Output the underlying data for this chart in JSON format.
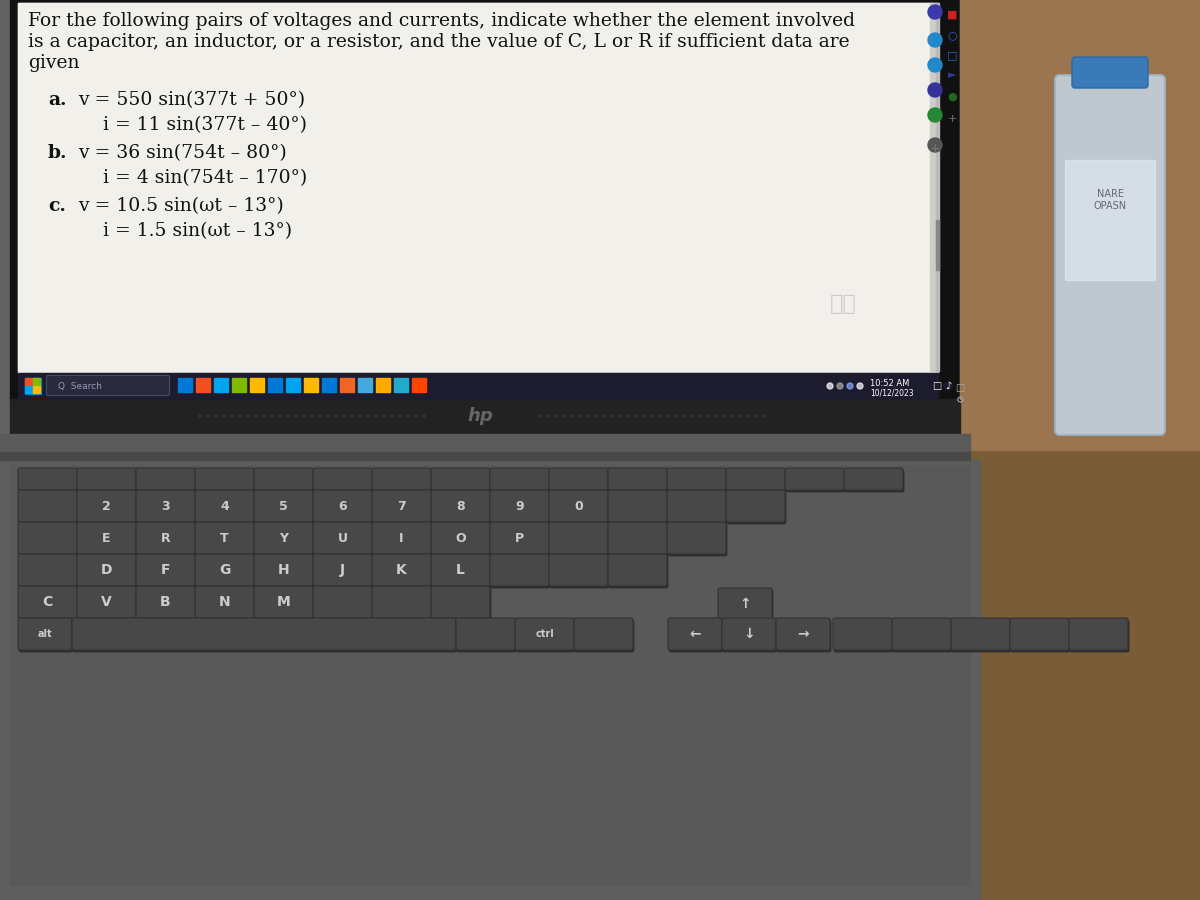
{
  "title_lines": [
    "For the following pairs of voltages and currents, indicate whether the element involved",
    "is a capacitor, an inductor, or a resistor, and the value of C, L or R if sufficient data are",
    "given"
  ],
  "problems": [
    {
      "label": "a.",
      "line1": "v = 550 sin(377t + 50°)",
      "line2": "i = 11 sin(377t – 40°)"
    },
    {
      "label": "b.",
      "line1": "v = 36 sin(754t – 80°)",
      "line2": "i = 4 sin(754t – 170°)"
    },
    {
      "label": "c.",
      "line1": "v = 10.5 sin(ωt – 13°)",
      "line2": "i = 1.5 sin(ωt – 13°)"
    }
  ],
  "screen_bg": "#e8e6e1",
  "content_bg": "#f2f0eb",
  "screen_text_color": "#111111",
  "laptop_body_color": "#626262",
  "taskbar_color": "#1c1c2e",
  "keyboard_bg": "#555555",
  "key_color": "#484848",
  "key_edge": "#333333",
  "title_fontsize": 13.5,
  "problem_fontsize": 13.5,
  "right_table_color": "#8b6f4a",
  "bottle_color": "#c8dde8",
  "bottle_label_color": "#d0d8e0"
}
